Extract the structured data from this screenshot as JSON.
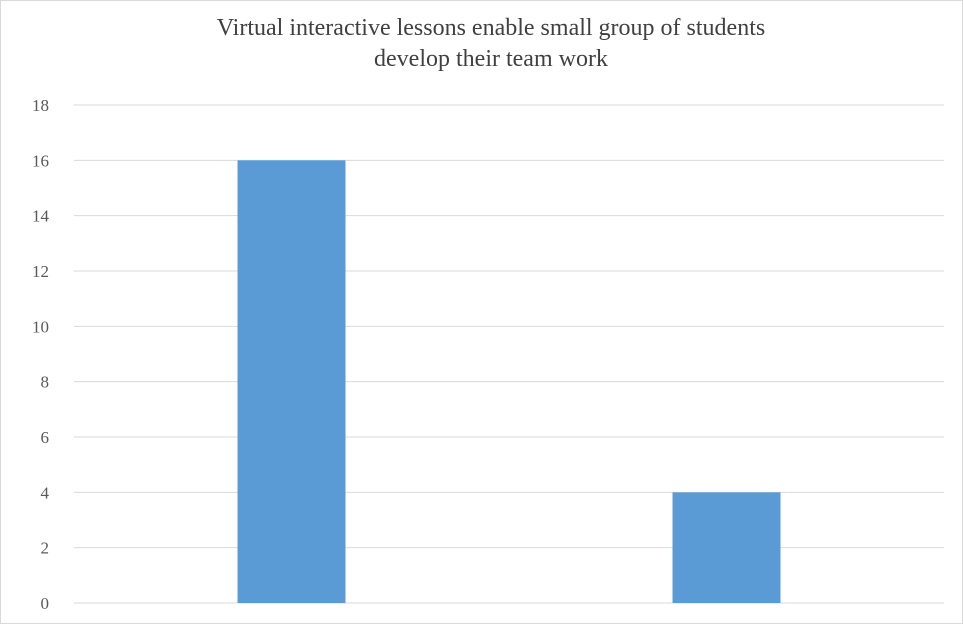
{
  "chart_data": {
    "type": "bar",
    "title": "Virtual interactive lessons enable small group of students\ndevelop their team work",
    "xlabel": "",
    "ylabel": "",
    "categories": [
      "",
      ""
    ],
    "values": [
      16,
      4
    ],
    "ylim": [
      0,
      18
    ],
    "yticks": [
      "0",
      "2",
      "4",
      "6",
      "8",
      "10",
      "12",
      "14",
      "16",
      "18"
    ],
    "grid": true,
    "legend": "none",
    "colors": {
      "bar": "#5b9bd5",
      "gridline": "#d9d9d9",
      "text": "#595959"
    }
  }
}
